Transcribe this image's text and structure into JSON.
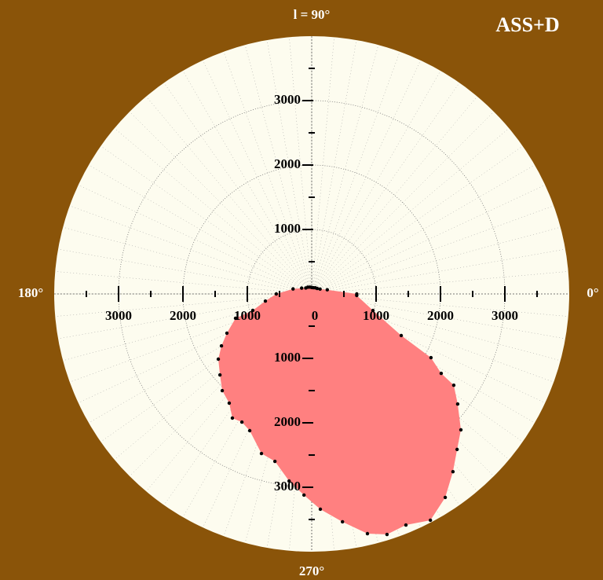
{
  "chart_data": {
    "type": "polar",
    "title": "ASS+D",
    "rlim": [
      0,
      4000
    ],
    "rticks": [
      0,
      1000,
      2000,
      3000
    ],
    "rminor": [
      500,
      1500,
      2500,
      3500
    ],
    "thetaticks": [
      {
        "value": 0,
        "label": "0°"
      },
      {
        "value": 90,
        "label": "l = 90°"
      },
      {
        "value": 180,
        "label": "180°"
      },
      {
        "value": 270,
        "label": "270°"
      }
    ],
    "grid": true,
    "series": [
      {
        "color": "#ff8080",
        "theta": [
          0,
          15,
          30,
          45,
          60,
          75,
          90,
          105,
          120,
          135,
          150,
          165,
          180,
          188.7,
          195.6,
          197.7,
          204.8,
          209.9,
          214.9,
          221.4,
          227.2,
          232.9,
          237.4,
          241.4,
          245.6,
          252.5,
          257.6,
          263.1,
          267.8,
          272.3,
          277.7,
          283.1,
          287.4,
          292.2,
          297.7,
          303.3,
          308.5,
          313.1,
          317.7,
          323.0,
          327.3,
          328.5,
          331.9,
          335.1,
          344.9,
          358
        ],
        "r": [
          700,
          250,
          150,
          120,
          110,
          100,
          100,
          110,
          120,
          130,
          180,
          300,
          550,
          728,
          950,
          1242,
          1451,
          1617,
          1769,
          1900,
          2045,
          2124,
          2287,
          2265,
          2330,
          2596,
          2660,
          2924,
          3124,
          3344,
          3568,
          3819,
          3911,
          3873,
          3966,
          3778,
          3524,
          3305,
          3133,
          2839,
          2622,
          2359,
          2100,
          1533,
          985,
          700
        ]
      }
    ]
  }
}
